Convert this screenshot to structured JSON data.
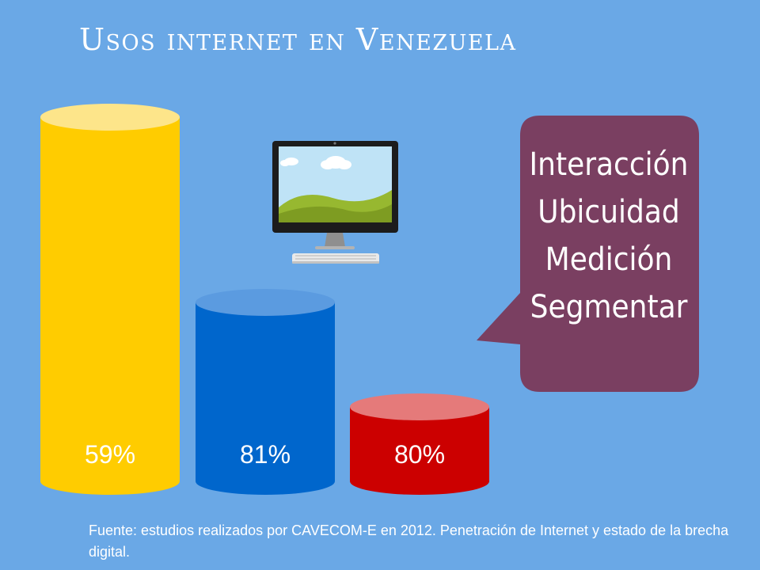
{
  "title": "Usos internet en Venezuela",
  "chart_data": {
    "type": "bar",
    "title": "Usos internet en Venezuela",
    "xlabel": "",
    "ylabel": "",
    "values": [
      59,
      81,
      80
    ],
    "value_labels": [
      "59%",
      "81%",
      "80%"
    ],
    "colors": [
      "#ffcc00",
      "#0066cc",
      "#cc0000"
    ],
    "grid": false,
    "legend": "none"
  },
  "bubble": {
    "lines": [
      "Interacción",
      "Ubicuidad",
      "Medición",
      "Segmentar"
    ],
    "color": "#7a3f61"
  },
  "icon": "desktop-computer-icon",
  "source": "Fuente: estudios realizados por CAVECOM-E en 2012. Penetración de Internet y estado de la brecha digital."
}
